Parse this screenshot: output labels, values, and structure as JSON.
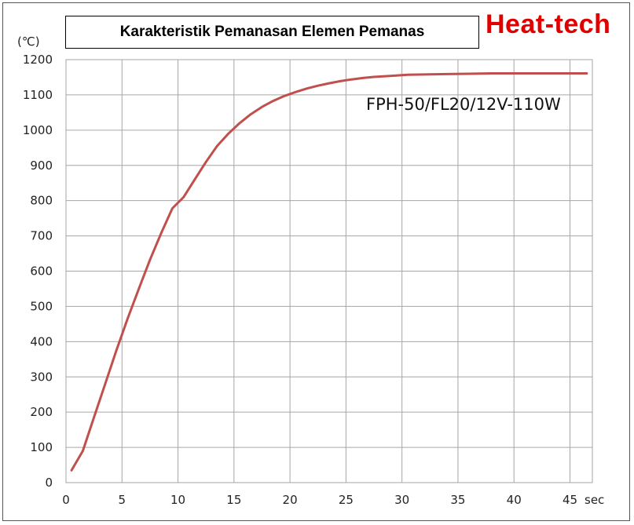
{
  "chart_data": {
    "type": "line",
    "title": "Karakteristik Pemanasan Elemen Pemanas",
    "brand": "Heat-tech",
    "ylabel": "(℃)",
    "xlabel": "sec",
    "annotation": "FPH-50/FL20/12V-110W",
    "xlim": [
      0,
      47
    ],
    "ylim": [
      0,
      1200
    ],
    "xticks": [
      0,
      5,
      10,
      15,
      20,
      25,
      30,
      35,
      40,
      45
    ],
    "yticks": [
      0,
      100,
      200,
      300,
      400,
      500,
      600,
      700,
      800,
      900,
      1000,
      1100,
      1200
    ],
    "grid": true,
    "series": [
      {
        "color": "#c0504d",
        "x": [
          0.5,
          1.5,
          2.5,
          3.5,
          4.5,
          5.5,
          6.5,
          7.5,
          8.5,
          9.5,
          10.5,
          11.5,
          12.5,
          13.5,
          14.5,
          15.5,
          16.5,
          17.5,
          18.5,
          19.5,
          20.5,
          21.5,
          22.5,
          23.5,
          24.5,
          25.5,
          26.5,
          27.5,
          28.5,
          29.5,
          30.5,
          32,
          34,
          36,
          38,
          40,
          42,
          44,
          46.5
        ],
        "y": [
          35,
          90,
          185,
          280,
          375,
          465,
          550,
          632,
          708,
          778,
          810,
          860,
          910,
          955,
          990,
          1020,
          1045,
          1066,
          1083,
          1097,
          1108,
          1118,
          1126,
          1133,
          1139,
          1144,
          1148,
          1151,
          1153,
          1155,
          1157,
          1158,
          1159,
          1160,
          1161,
          1161,
          1161,
          1161,
          1161
        ]
      }
    ]
  }
}
